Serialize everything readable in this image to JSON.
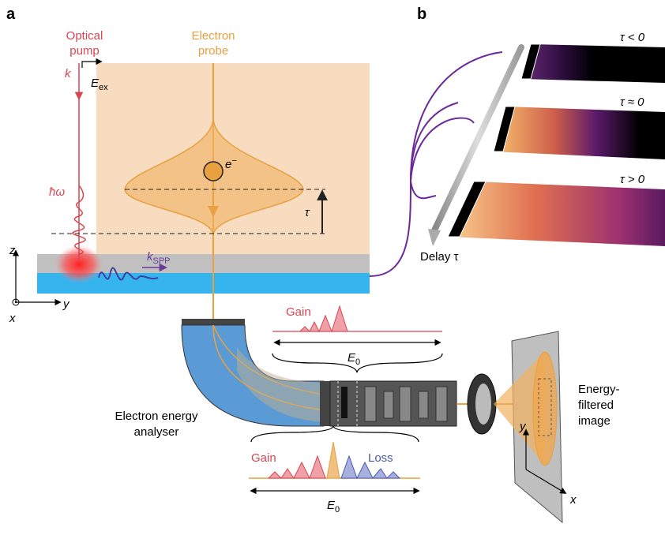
{
  "panel_labels": [
    "a",
    "b"
  ],
  "panel_a": {
    "optical_pump": [
      "Optical",
      "pump"
    ],
    "electron_probe": [
      "Electron",
      "probe"
    ],
    "wavevector": "k",
    "field": {
      "symbol": "E",
      "sub": "ex"
    },
    "electron": {
      "symbol": "e",
      "sup": "−"
    },
    "photon": "ħω",
    "delay": "τ",
    "spp": {
      "symbol": "k",
      "sub": "SPP"
    },
    "axes": {
      "z": "z",
      "y": "y",
      "x": "x"
    },
    "analyser": [
      "Electron energy",
      "analyser"
    ],
    "top_spectrum": {
      "gain": "Gain",
      "energy": {
        "symbol": "E",
        "sub": "0"
      }
    },
    "bottom_spectrum": {
      "gain": "Gain",
      "loss": "Loss",
      "energy": {
        "symbol": "E",
        "sub": "0"
      }
    },
    "image": [
      "Energy-",
      "filtered",
      "image"
    ],
    "image_axes": {
      "y": "y",
      "x": "x"
    }
  },
  "panel_b": {
    "frames": [
      "τ < 0",
      "τ ≈ 0",
      "τ > 0"
    ],
    "delay": "Delay τ"
  }
}
